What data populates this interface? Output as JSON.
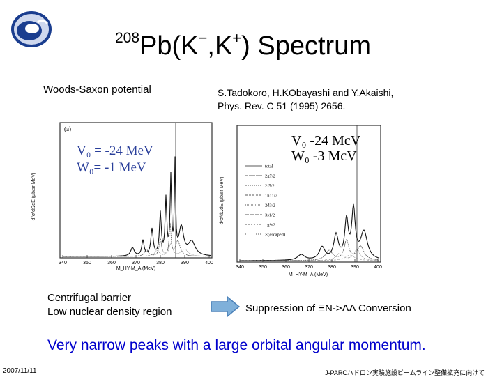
{
  "title": {
    "mass_number": "208",
    "element": "Pb(K",
    "minus": "−",
    "comma": ",K",
    "plus": "+",
    "tail": ") Spectrum"
  },
  "left_figure": {
    "heading": "Woods-Saxon potential",
    "panel_label": "(a)",
    "v0_label": "V₀ = -24 MeV",
    "w0_label": "W₀= -1 MeV",
    "xticks": [
      "340",
      "350",
      "360",
      "370",
      "380",
      "390",
      "400"
    ],
    "xlabel": "M_HY-M_A (MeV)",
    "ylabel": "d²σ/dΩdE (μb/sr MeV)"
  },
  "right_figure": {
    "citation_line1": "S.Tadokoro, H.KObayashi and Y.Akaishi,",
    "citation_line2": "Phys. Rev. C 51 (1995) 2656.",
    "v0_label": "V₀   -24 McV",
    "w0_label": "W₀   -3 McV",
    "legend": [
      "total",
      "2g7/2",
      "2f5/2",
      "1h11/2",
      "2d3/2",
      "3s1/2",
      "1g9/2",
      "Ξ(escaped)"
    ],
    "xticks": [
      "340",
      "350",
      "360",
      "370",
      "380",
      "390",
      "400"
    ],
    "xlabel": "M_HY-M_A (MeV)",
    "ylabel": "d²σ/dΩdE (μb/sr MeV)"
  },
  "centrifugal": {
    "line1": "Centrifugal barrier",
    "line2": "Low nuclear density region"
  },
  "suppression": "Suppression of ΞN->ΛΛ Conversion",
  "conclusion": "Very narrow peaks with a large orbital angular momentum.",
  "footer": {
    "date": "2007/11/11",
    "jp": "J-PARCハドロン実験施設ビームライン整備拡充に向けて"
  },
  "colors": {
    "conclusion": "#0000cc",
    "arrow_fill": "#7fb0da",
    "arrow_stroke": "#4a80b8",
    "logo_blue": "#1a3d8f"
  }
}
